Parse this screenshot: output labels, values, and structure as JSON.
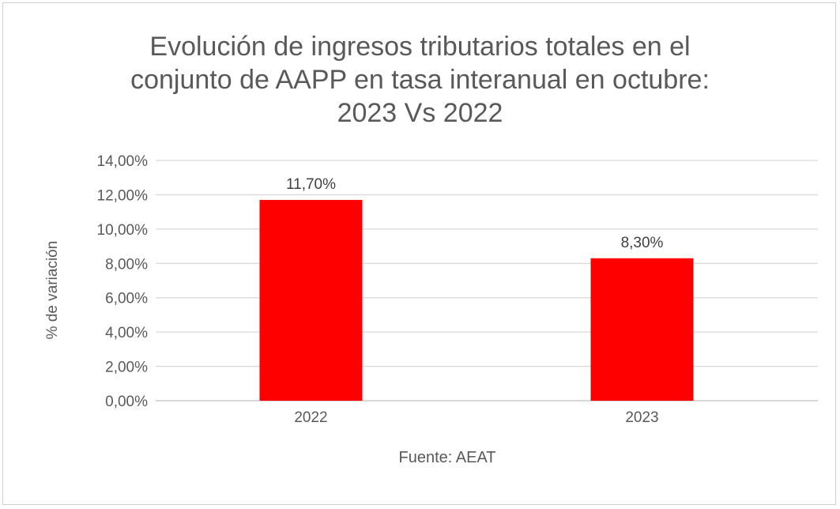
{
  "chart_data": {
    "type": "bar",
    "title_lines": [
      "Evolución de ingresos tributarios totales en el",
      "conjunto de AAPP en tasa interanual en octubre:",
      "2023 Vs 2022"
    ],
    "categories": [
      "2022",
      "2023"
    ],
    "values": [
      11.7,
      8.3
    ],
    "data_labels": [
      "11,70%",
      "8,30%"
    ],
    "xlabel": "Fuente: AEAT",
    "ylabel": "% de variación",
    "ylim": [
      0,
      14
    ],
    "yticks": [
      0,
      2,
      4,
      6,
      8,
      10,
      12,
      14
    ],
    "ytick_labels": [
      "0,00%",
      "2,00%",
      "4,00%",
      "6,00%",
      "8,00%",
      "10,00%",
      "12,00%",
      "14,00%"
    ],
    "grid": true,
    "legend": "none",
    "bar_color": "#FF0000"
  }
}
